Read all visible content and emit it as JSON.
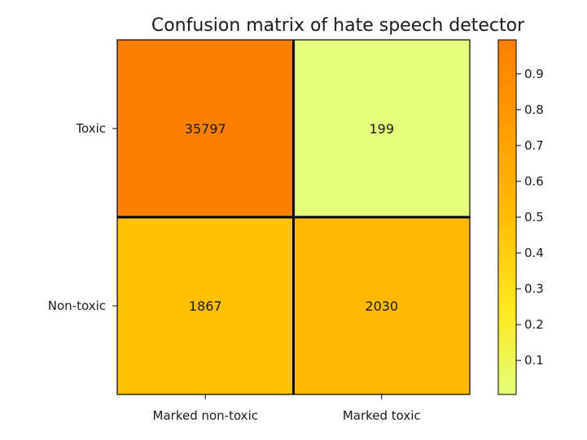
{
  "chart_data": {
    "type": "heatmap",
    "title": "Confusion matrix of hate speech detector",
    "rows": [
      "Toxic",
      "Non-toxic"
    ],
    "columns": [
      "Marked non-toxic",
      "Marked toxic"
    ],
    "cells": [
      [
        {
          "label": "35797",
          "value": 0.995
        },
        {
          "label": "199",
          "value": 0.005
        }
      ],
      [
        {
          "label": "1867",
          "value": 0.479
        },
        {
          "label": "2030",
          "value": 0.521
        }
      ]
    ],
    "colorbar": {
      "range": [
        0.005,
        0.995
      ],
      "ticks": [
        "0.1",
        "0.2",
        "0.3",
        "0.4",
        "0.5",
        "0.6",
        "0.7",
        "0.8",
        "0.9"
      ],
      "colormap": "Wistia"
    },
    "colors": {
      "low": "#e4ff7a",
      "mid_low": "#ffe81a",
      "mid": "#ffbd00",
      "high": "#fc7f00",
      "border": "#000000"
    }
  }
}
